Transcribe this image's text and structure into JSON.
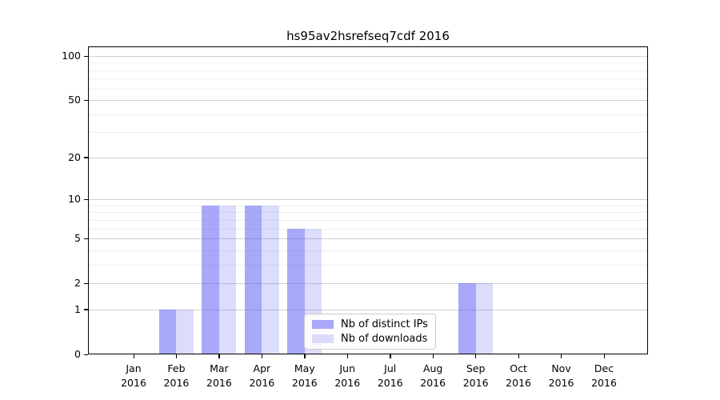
{
  "chart_data": {
    "type": "bar",
    "title": "hs95av2hsrefseq7cdf 2016",
    "categories": [
      "Jan",
      "Feb",
      "Mar",
      "Apr",
      "May",
      "Jun",
      "Jul",
      "Aug",
      "Sep",
      "Oct",
      "Nov",
      "Dec"
    ],
    "year_label": "2016",
    "series": [
      {
        "name": "Nb of distinct IPs",
        "fill": "rgba(102,102,242,0.57)",
        "color_flat": "#a8a8f8",
        "values": [
          0,
          1,
          9,
          9,
          6,
          0,
          0,
          0,
          2,
          0,
          0,
          0
        ]
      },
      {
        "name": "Nb of downloads",
        "fill": "rgba(102,102,242,0.23)",
        "color_flat": "#dcdcfa",
        "values": [
          0,
          1,
          9,
          9,
          6,
          0,
          0,
          0,
          2,
          0,
          0,
          0
        ]
      }
    ],
    "xlabel": "",
    "ylabel": "",
    "yscale": "log1p",
    "ylim": [
      0,
      116
    ],
    "y_major_ticks": [
      0,
      1,
      2,
      5,
      10,
      20,
      50,
      100
    ],
    "y_minor_ticks": [
      3,
      4,
      6,
      7,
      8,
      9,
      30,
      40,
      60,
      70,
      80,
      90
    ],
    "grid": true,
    "legend_position": "lower center",
    "colors": {
      "grid_major": "#cfcfcf",
      "grid_minor": "#efefef",
      "axis": "#000000",
      "text": "#000000"
    }
  }
}
